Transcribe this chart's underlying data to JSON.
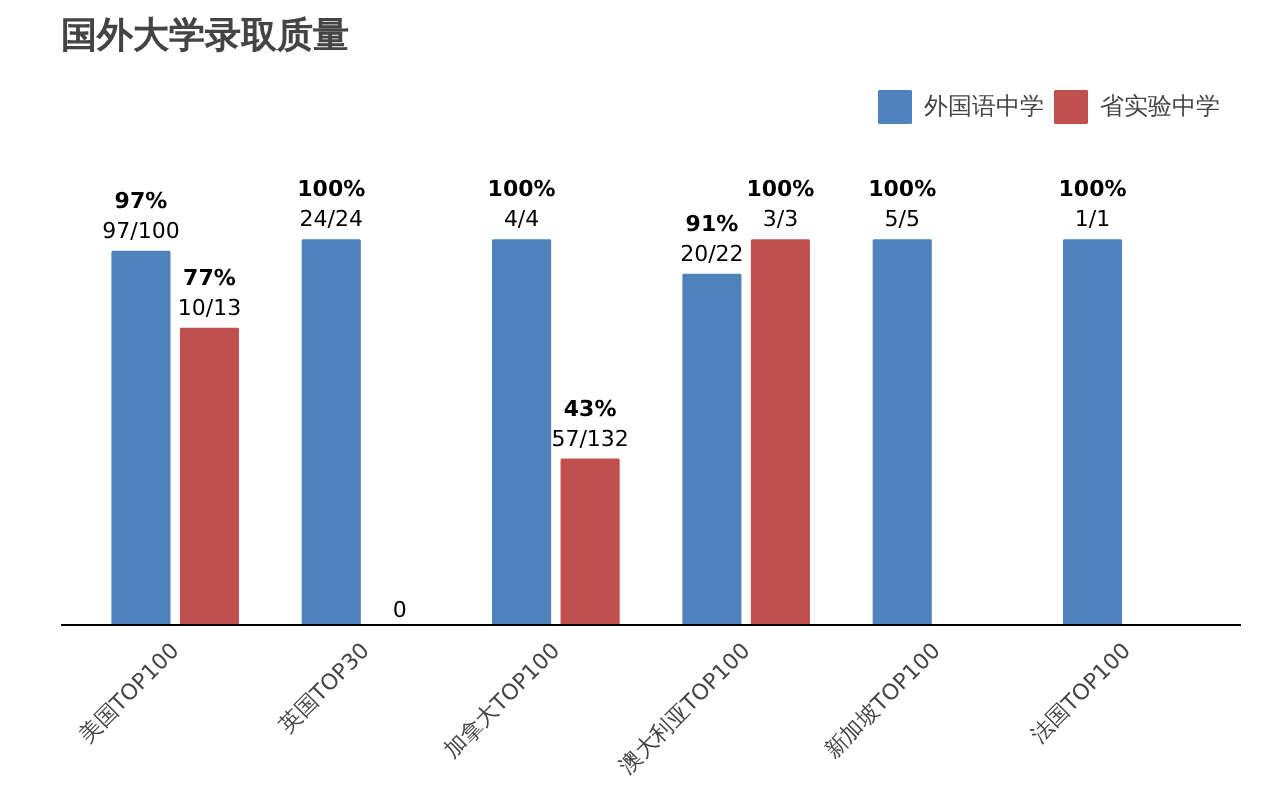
{
  "chart_data": {
    "type": "bar",
    "title": "国外大学录取质量",
    "categories": [
      "美国TOP100",
      "英国TOP30",
      "加拿大TOP100",
      "澳大利亚TOP100",
      "新加坡TOP100",
      "法国TOP100"
    ],
    "series": [
      {
        "name": "外国语中学",
        "color": "#4f81bd",
        "values": [
          97,
          100,
          100,
          91,
          100,
          100
        ],
        "value_labels": [
          "97%\n97/100",
          "100%\n24/24",
          "100%\n4/4",
          "91%\n20/22",
          "100%\n5/5",
          "100%\n1/1"
        ]
      },
      {
        "name": "省实验中学",
        "color": "#c0504d",
        "values": [
          77,
          0,
          43,
          100,
          null,
          null
        ],
        "value_labels": [
          "77%\n10/13",
          "0",
          "43%\n57/132",
          "100%\n3/3",
          null,
          null
        ]
      }
    ],
    "legend": "top",
    "grid": false,
    "tick_labels": "x"
  }
}
